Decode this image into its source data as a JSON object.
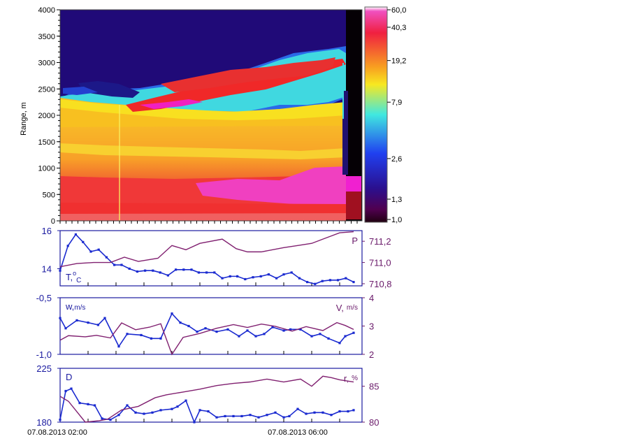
{
  "chart_data": [
    {
      "type": "heatmap",
      "title": "",
      "ylabel": "Range, m",
      "ylim": [
        0,
        4000
      ],
      "y_ticks": [
        "0",
        "500",
        "1000",
        "1500",
        "2000",
        "2500",
        "3000",
        "3500",
        "4000"
      ],
      "y_tick_values": [
        0,
        500,
        1000,
        1500,
        2000,
        2500,
        3000,
        3500,
        4000
      ],
      "colorbar_labels": [
        "60,0",
        "40,3",
        "19,2",
        "7,9",
        "2,6",
        "1,3",
        "1,0"
      ],
      "colorbar_values": [
        60.0,
        40.3,
        19.2,
        7.9,
        2.6,
        1.3,
        1.0
      ],
      "colors": {
        "deep": "#1a0a7a",
        "blue": "#2040e0",
        "cyan": "#40d8e8",
        "yellow": "#f8e020",
        "orange": "#f8a020",
        "red": "#f02828",
        "magenta": "#f020c0",
        "dark": "#000000"
      }
    },
    {
      "type": "line",
      "x_hours": [
        1.0,
        1.5,
        2.0,
        2.5,
        3.0,
        3.5,
        4.0,
        4.5,
        5.0,
        5.5,
        6.0,
        6.5
      ],
      "series": [
        {
          "name": "T, °C",
          "axis": "left",
          "color": "#1a2ad0",
          "x": [
            1.0,
            1.14,
            1.28,
            1.41,
            1.55,
            1.69,
            1.83,
            1.97,
            2.1,
            2.24,
            2.38,
            2.52,
            2.66,
            2.79,
            2.93,
            3.07,
            3.21,
            3.35,
            3.48,
            3.62,
            3.76,
            3.9,
            4.04,
            4.17,
            4.31,
            4.45,
            4.59,
            4.73,
            4.87,
            5.0,
            5.14,
            5.28,
            5.42,
            5.56,
            5.69,
            5.83,
            5.97,
            6.11,
            6.25
          ],
          "values": [
            13.9,
            15.2,
            15.8,
            15.4,
            14.9,
            15.0,
            14.6,
            14.2,
            14.2,
            14.0,
            13.85,
            13.9,
            13.9,
            13.8,
            13.65,
            13.95,
            13.95,
            13.95,
            13.8,
            13.8,
            13.8,
            13.5,
            13.6,
            13.6,
            13.45,
            13.55,
            13.6,
            13.7,
            13.5,
            13.7,
            13.8,
            13.5,
            13.3,
            13.2,
            13.35,
            13.4,
            13.4,
            13.5,
            13.3
          ]
        },
        {
          "name": "P",
          "axis": "right",
          "color": "#802070",
          "x": [
            1.0,
            1.3,
            1.6,
            1.9,
            2.15,
            2.4,
            2.75,
            3.0,
            3.25,
            3.5,
            3.9,
            4.15,
            4.35,
            4.6,
            5.0,
            5.25,
            5.5,
            5.7,
            5.85,
            6.0,
            6.25
          ],
          "values": [
            710.96,
            710.99,
            711.0,
            711.0,
            711.05,
            711.01,
            711.04,
            711.16,
            711.12,
            711.18,
            711.22,
            711.13,
            711.1,
            711.1,
            711.14,
            711.16,
            711.18,
            711.22,
            711.25,
            711.28,
            711.29
          ]
        }
      ],
      "left_ylim": [
        13.1,
        16.0
      ],
      "right_ylim": [
        710.78,
        711.3
      ],
      "left_ticks": [
        "16",
        "14"
      ],
      "left_tick_values": [
        16,
        14
      ],
      "right_ticks": [
        "711,2",
        "711,0",
        "710,8"
      ],
      "right_tick_values": [
        711.2,
        711.0,
        710.8
      ],
      "left_label": "T,",
      "left_label_sup": "o",
      "left_label_sub": "C",
      "right_label": "P"
    },
    {
      "type": "line",
      "series": [
        {
          "name": "w, m/s",
          "axis": "left",
          "color": "#1a2ad0",
          "x": [
            1.0,
            1.1,
            1.3,
            1.5,
            1.68,
            1.8,
            2.05,
            2.2,
            2.45,
            2.63,
            2.8,
            3.0,
            3.15,
            3.3,
            3.45,
            3.6,
            3.8,
            4.0,
            4.2,
            4.35,
            4.5,
            4.65,
            4.8,
            5.0,
            5.12,
            5.3,
            5.5,
            5.65,
            5.8,
            6.0,
            6.1,
            6.25
          ],
          "values": [
            -0.68,
            -0.77,
            -0.7,
            -0.72,
            -0.74,
            -0.68,
            -0.93,
            -0.82,
            -0.83,
            -0.86,
            -0.86,
            -0.64,
            -0.72,
            -0.75,
            -0.8,
            -0.77,
            -0.8,
            -0.78,
            -0.84,
            -0.79,
            -0.84,
            -0.82,
            -0.76,
            -0.79,
            -0.78,
            -0.78,
            -0.84,
            -0.82,
            -0.86,
            -0.9,
            -0.84,
            -0.81
          ]
        },
        {
          "name": "V, m/s",
          "axis": "right",
          "color": "#802070",
          "x": [
            1.0,
            1.15,
            1.45,
            1.65,
            1.9,
            2.1,
            2.35,
            2.6,
            2.8,
            3.0,
            3.2,
            3.5,
            3.8,
            4.1,
            4.35,
            4.6,
            4.85,
            5.15,
            5.4,
            5.7,
            5.95,
            6.1,
            6.25
          ],
          "values": [
            2.5,
            2.66,
            2.62,
            2.67,
            2.58,
            3.11,
            2.87,
            2.96,
            3.08,
            2.0,
            2.6,
            2.74,
            2.92,
            3.05,
            2.95,
            3.07,
            2.99,
            2.82,
            2.98,
            2.84,
            3.12,
            3.02,
            2.88
          ]
        }
      ],
      "left_ylim": [
        -1.0,
        -0.5
      ],
      "right_ylim": [
        2.0,
        4.0
      ],
      "left_ticks": [
        "-0,5",
        "-1,0"
      ],
      "left_tick_values": [
        -0.5,
        -1.0
      ],
      "right_ticks": [
        "4",
        "3",
        "2"
      ],
      "right_tick_values": [
        4,
        3,
        2
      ],
      "left_label": "w,",
      "left_label_sub": "m/s",
      "right_label": "V,",
      "right_label_sub": "m/s"
    },
    {
      "type": "line",
      "series": [
        {
          "name": "D",
          "axis": "left",
          "color": "#1a2ad0",
          "x": [
            1.0,
            1.1,
            1.2,
            1.35,
            1.5,
            1.62,
            1.75,
            1.9,
            2.05,
            2.2,
            2.35,
            2.5,
            2.65,
            2.8,
            3.0,
            3.1,
            3.25,
            3.4,
            3.5,
            3.65,
            3.8,
            3.95,
            4.1,
            4.25,
            4.4,
            4.55,
            4.7,
            4.85,
            5.0,
            5.1,
            5.25,
            5.4,
            5.55,
            5.7,
            5.85,
            6.0,
            6.15,
            6.25
          ],
          "values": [
            182,
            206,
            208,
            196,
            195,
            194,
            183,
            182,
            186,
            194,
            188,
            187,
            188,
            190,
            191,
            193,
            198,
            180,
            190,
            189,
            184,
            185,
            185,
            185,
            186,
            184,
            186,
            188,
            184,
            185,
            191,
            187,
            188,
            188,
            186,
            189,
            189,
            190
          ]
        },
        {
          "name": "r, %",
          "axis": "right",
          "color": "#802070",
          "x": [
            1.0,
            1.15,
            1.45,
            1.7,
            1.85,
            2.1,
            2.4,
            2.7,
            2.9,
            3.2,
            3.5,
            3.8,
            4.1,
            4.4,
            4.7,
            5.0,
            5.3,
            5.5,
            5.7,
            5.85,
            6.0,
            6.25
          ],
          "values": [
            83.6,
            82.9,
            79.7,
            80.2,
            80.4,
            81.7,
            82.2,
            83.4,
            83.8,
            84.2,
            84.6,
            85.1,
            85.4,
            85.6,
            86.0,
            85.6,
            86.0,
            85.0,
            86.4,
            86.2,
            85.9,
            85.6
          ]
        }
      ],
      "left_ylim": [
        180,
        225
      ],
      "right_ylim": [
        80,
        87.5
      ],
      "left_ticks": [
        "225",
        "180"
      ],
      "left_tick_values": [
        225,
        180
      ],
      "right_ticks": [
        "85",
        "80"
      ],
      "right_tick_values": [
        85,
        80
      ],
      "left_label": "D",
      "right_label": "r,",
      "right_label_sub": "%",
      "x_tick_labels": [
        "07.08.2013 02:00",
        "07.08.2013 06:00"
      ]
    }
  ]
}
